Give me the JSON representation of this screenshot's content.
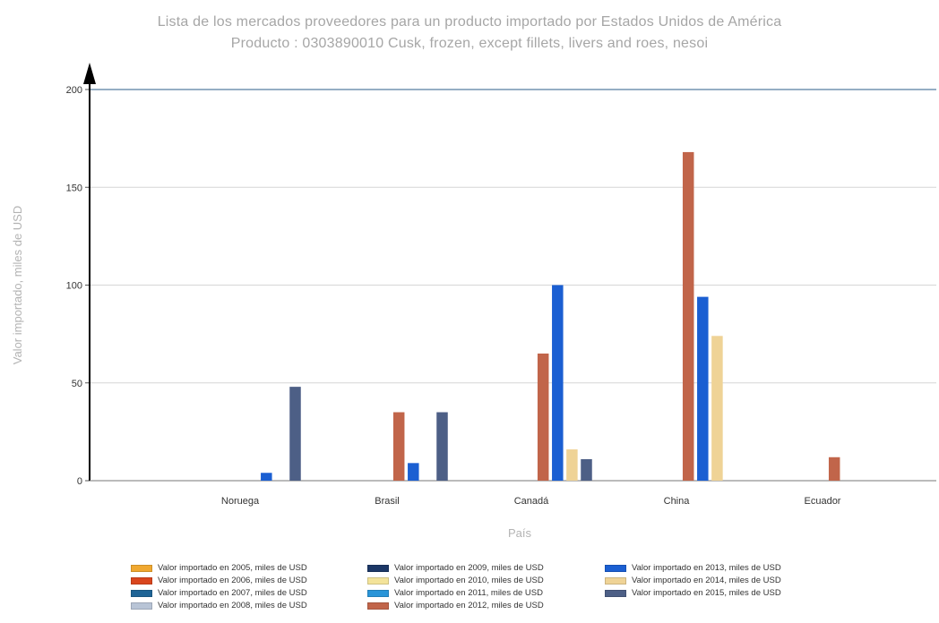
{
  "title": "Lista de los mercados proveedores para un producto importado por Estados Unidos de América",
  "subtitle": "Producto : 0303890010 Cusk, frozen, except fillets, livers and roes, nesoi",
  "chart_data": {
    "type": "bar",
    "xlabel": "País",
    "ylabel": "Valor importado, miles de USD",
    "ylim": [
      0,
      200
    ],
    "yticks": [
      0,
      50,
      100,
      150,
      200
    ],
    "grid": true,
    "legend_position": "bottom",
    "categories": [
      "Noruega",
      "Brasil",
      "Canadá",
      "China",
      "Ecuador"
    ],
    "series": [
      {
        "name": "Valor importado en 2005, miles de USD",
        "color": "#f0a830",
        "values": [
          0,
          0,
          0,
          0,
          0
        ]
      },
      {
        "name": "Valor importado en 2006, miles de USD",
        "color": "#d9461e",
        "values": [
          0,
          0,
          0,
          0,
          0
        ]
      },
      {
        "name": "Valor importado en 2007, miles de USD",
        "color": "#1f6496",
        "values": [
          0,
          0,
          0,
          0,
          0
        ]
      },
      {
        "name": "Valor importado en 2008, miles de USD",
        "color": "#b8c4d6",
        "values": [
          0,
          0,
          0,
          0,
          0
        ]
      },
      {
        "name": "Valor importado en 2009, miles de USD",
        "color": "#1c3766",
        "values": [
          0,
          0,
          0,
          0,
          0
        ]
      },
      {
        "name": "Valor importado en 2010, miles de USD",
        "color": "#f3e39a",
        "values": [
          0,
          0,
          0,
          0,
          0
        ]
      },
      {
        "name": "Valor importado en 2011, miles de USD",
        "color": "#2a95d8",
        "values": [
          0,
          0,
          0,
          0,
          0
        ]
      },
      {
        "name": "Valor importado en 2012, miles de USD",
        "color": "#c1654a",
        "values": [
          0,
          35,
          65,
          168,
          12
        ]
      },
      {
        "name": "Valor importado en 2013, miles de USD",
        "color": "#1b5fd2",
        "values": [
          4,
          9,
          100,
          94,
          0
        ]
      },
      {
        "name": "Valor importado en 2014, miles de USD",
        "color": "#efd396",
        "values": [
          0,
          0,
          16,
          74,
          0
        ]
      },
      {
        "name": "Valor importado en 2015, miles de USD",
        "color": "#4d5f86",
        "values": [
          48,
          35,
          11,
          0,
          0
        ]
      }
    ]
  }
}
